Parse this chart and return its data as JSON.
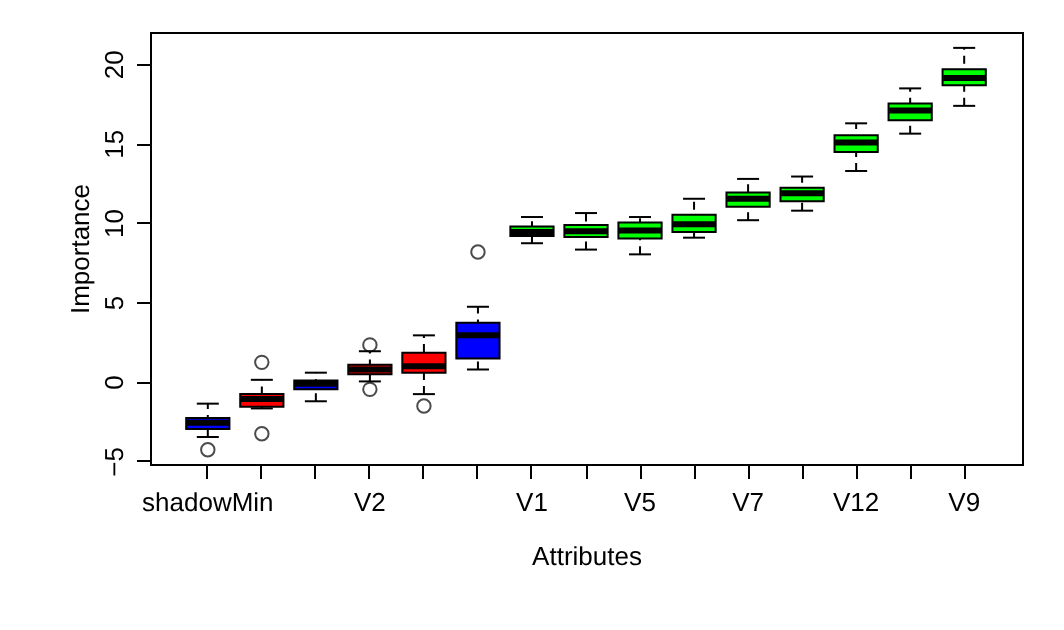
{
  "chart_data": {
    "type": "box",
    "xlabel": "Attributes",
    "ylabel": "Importance",
    "categories": [
      "shadowMin",
      null,
      null,
      "V2",
      null,
      null,
      "V1",
      null,
      "V5",
      null,
      "V7",
      null,
      "V12",
      null,
      "V9"
    ],
    "colors": [
      "#0000ff",
      "#ff0000",
      "#0000ff",
      "#ff0000",
      "#ff0000",
      "#0000ff",
      "#00ff00",
      "#00ff00",
      "#00ff00",
      "#00ff00",
      "#00ff00",
      "#00ff00",
      "#00ff00",
      "#00ff00",
      "#00ff00"
    ],
    "boxes": [
      {
        "low": -3.5,
        "q1": -3.0,
        "median": -2.6,
        "q3": -2.3,
        "high": -1.4,
        "outliers": [
          -4.3
        ]
      },
      {
        "low": -1.7,
        "q1": -1.6,
        "median": -1.1,
        "q3": -0.8,
        "high": 0.1,
        "outliers": [
          1.2,
          -3.3
        ]
      },
      {
        "low": -1.25,
        "q1": -0.5,
        "median": -0.15,
        "q3": 0.05,
        "high": 0.55
      },
      {
        "low": 0.0,
        "q1": 0.45,
        "median": 0.75,
        "q3": 1.05,
        "high": 1.9,
        "outliers": [
          2.3,
          -0.5
        ]
      },
      {
        "low": -0.8,
        "q1": 0.55,
        "median": 0.95,
        "q3": 1.8,
        "high": 2.9,
        "outliers": [
          -1.55
        ]
      },
      {
        "low": 0.75,
        "q1": 1.45,
        "median": 2.9,
        "q3": 3.7,
        "high": 4.7,
        "outliers": [
          8.15
        ]
      },
      {
        "low": 8.7,
        "q1": 9.15,
        "median": 9.4,
        "q3": 9.75,
        "high": 10.35
      },
      {
        "low": 8.3,
        "q1": 9.1,
        "median": 9.45,
        "q3": 9.85,
        "high": 10.6
      },
      {
        "low": 8.0,
        "q1": 9.0,
        "median": 9.5,
        "q3": 10.0,
        "high": 10.35
      },
      {
        "low": 9.05,
        "q1": 9.4,
        "median": 9.9,
        "q3": 10.5,
        "high": 11.5
      },
      {
        "low": 10.15,
        "q1": 11.0,
        "median": 11.5,
        "q3": 11.9,
        "high": 12.75
      },
      {
        "low": 10.75,
        "q1": 11.35,
        "median": 11.85,
        "q3": 12.2,
        "high": 12.9
      },
      {
        "low": 13.25,
        "q1": 14.45,
        "median": 15.05,
        "q3": 15.5,
        "high": 16.25
      },
      {
        "low": 15.6,
        "q1": 16.45,
        "median": 17.05,
        "q3": 17.5,
        "high": 18.45
      },
      {
        "low": 17.35,
        "q1": 18.65,
        "median": 19.1,
        "q3": 19.65,
        "high": 21.0
      }
    ],
    "ylim": [
      -5.2,
      22
    ],
    "yticks": [
      -5,
      0,
      5,
      10,
      15,
      20
    ],
    "grid": false
  }
}
